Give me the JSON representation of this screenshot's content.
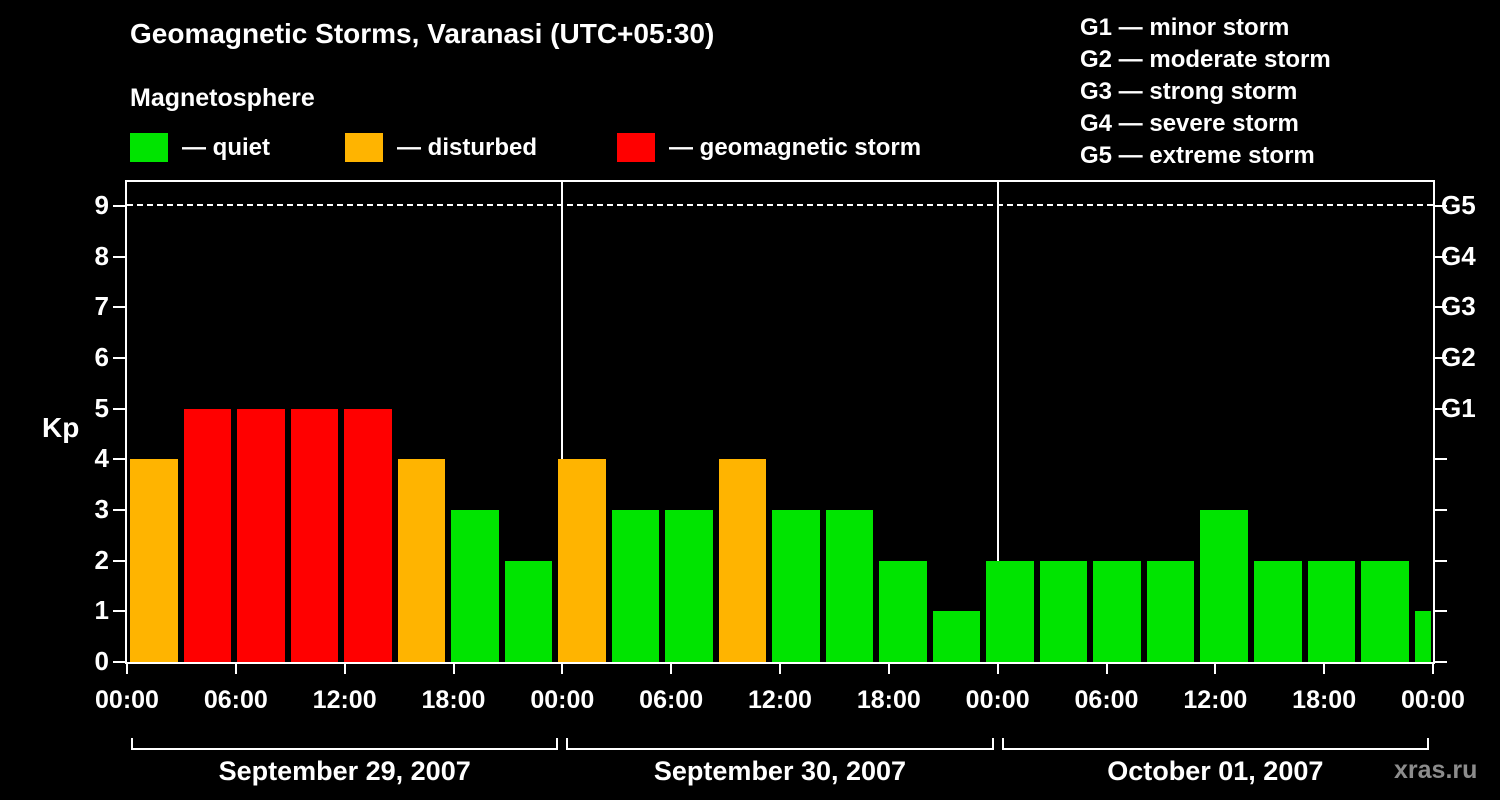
{
  "header": {
    "title": "Geomagnetic Storms, Varanasi (UTC+05:30)",
    "subtitle": "Magnetosphere"
  },
  "legend": {
    "items": [
      {
        "label": "— quiet",
        "color_key": "quiet"
      },
      {
        "label": "— disturbed",
        "color_key": "disturbed"
      },
      {
        "label": "— geomagnetic storm",
        "color_key": "storm"
      }
    ]
  },
  "g_scale_legend": {
    "items": [
      "G1 — minor storm",
      "G2 — moderate storm",
      "G3 — strong storm",
      "G4 — severe storm",
      "G5 — extreme storm"
    ]
  },
  "axes": {
    "y_label": "Kp",
    "y_ticks": [
      0,
      1,
      2,
      3,
      4,
      5,
      6,
      7,
      8,
      9
    ],
    "right_labels": [
      {
        "kp": 5,
        "label": "G1"
      },
      {
        "kp": 6,
        "label": "G2"
      },
      {
        "kp": 7,
        "label": "G3"
      },
      {
        "kp": 8,
        "label": "G4"
      },
      {
        "kp": 9,
        "label": "G5"
      }
    ],
    "x_tick_labels": [
      "00:00",
      "06:00",
      "12:00",
      "18:00",
      "00:00",
      "06:00",
      "12:00",
      "18:00",
      "00:00",
      "06:00",
      "12:00",
      "18:00",
      "00:00"
    ]
  },
  "colors": {
    "quiet": "#00e400",
    "disturbed": "#ffb400",
    "storm": "#ff0000",
    "background": "#000000",
    "axis": "#ffffff",
    "watermark": "#8c8c8c"
  },
  "chart_data": {
    "type": "bar",
    "title": "Geomagnetic Storms, Varanasi (UTC+05:30)",
    "subtitle": "Magnetosphere",
    "ylabel": "Kp",
    "ylim": [
      0,
      9.45
    ],
    "yticks": [
      0,
      1,
      2,
      3,
      4,
      5,
      6,
      7,
      8,
      9
    ],
    "interval_hours": 3,
    "x_tick_labels": [
      "00:00",
      "06:00",
      "12:00",
      "18:00",
      "00:00",
      "06:00",
      "12:00",
      "18:00",
      "00:00",
      "06:00",
      "12:00",
      "18:00",
      "00:00"
    ],
    "days": [
      {
        "date": "September 29, 2007",
        "kp_values": [
          4,
          5,
          5,
          5,
          5,
          4,
          3,
          2
        ]
      },
      {
        "date": "September 30, 2007",
        "kp_values": [
          4,
          3,
          3,
          4,
          3,
          3,
          2,
          1
        ]
      },
      {
        "date": "October 01, 2007",
        "kp_values": [
          2,
          2,
          2,
          2,
          3,
          2,
          2,
          2
        ]
      }
    ],
    "trailing_partial": {
      "kp": 1
    },
    "color_rule": {
      "quiet": "Kp <= 3",
      "disturbed": "Kp = 4",
      "storm": "Kp >= 5"
    },
    "g_scale": [
      {
        "kp": 5,
        "label": "G1"
      },
      {
        "kp": 6,
        "label": "G2"
      },
      {
        "kp": 7,
        "label": "G3"
      },
      {
        "kp": 8,
        "label": "G4"
      },
      {
        "kp": 9,
        "label": "G5"
      }
    ],
    "dashed_gridline_at_kp": 9,
    "grid": "vertical day separators, dashed line at Kp 9",
    "legend_position": "top-left"
  },
  "watermark": "xras.ru"
}
